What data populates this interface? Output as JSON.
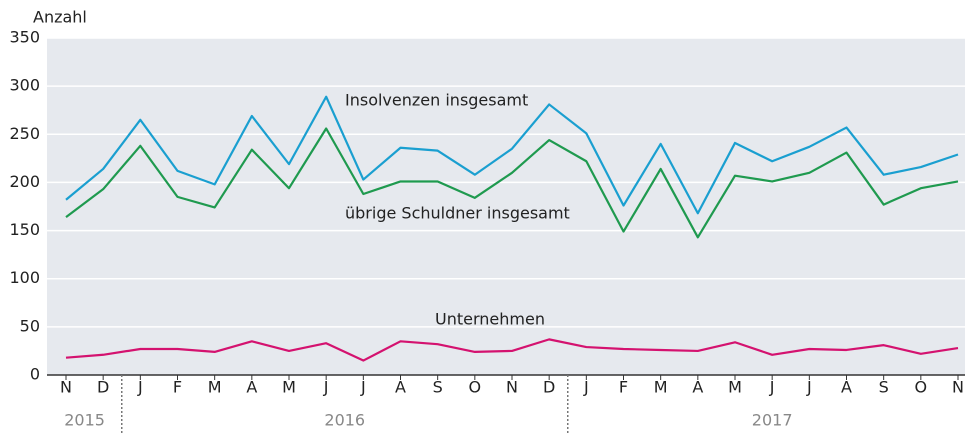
{
  "chart_data": {
    "type": "line",
    "y_label": "Anzahl",
    "categories": [
      "N",
      "D",
      "J",
      "F",
      "M",
      "A",
      "M",
      "J",
      "J",
      "A",
      "S",
      "O",
      "N",
      "D",
      "J",
      "F",
      "M",
      "A",
      "M",
      "J",
      "J",
      "A",
      "S",
      "O",
      "N"
    ],
    "x_groups": [
      {
        "label": "2015",
        "count": 2
      },
      {
        "label": "2016",
        "count": 12
      },
      {
        "label": "2017",
        "count": 11
      }
    ],
    "series": [
      {
        "name": "Insolvenzen insgesamt",
        "color": "#1a9fd0",
        "values": [
          182,
          214,
          265,
          212,
          198,
          269,
          219,
          289,
          203,
          236,
          233,
          208,
          235,
          281,
          251,
          176,
          240,
          168,
          241,
          222,
          237,
          257,
          208,
          216,
          229
        ]
      },
      {
        "name": "übrige Schuldner insgesamt",
        "color": "#1f9a4f",
        "values": [
          164,
          193,
          238,
          185,
          174,
          234,
          194,
          256,
          188,
          201,
          201,
          184,
          210,
          244,
          222,
          149,
          214,
          143,
          207,
          201,
          210,
          231,
          177,
          194,
          201
        ]
      },
      {
        "name": "Unternehmen",
        "color": "#d4126f",
        "values": [
          18,
          21,
          27,
          27,
          24,
          35,
          25,
          33,
          15,
          35,
          32,
          24,
          25,
          37,
          29,
          27,
          26,
          25,
          34,
          21,
          27,
          26,
          31,
          22,
          28
        ]
      }
    ],
    "ylim": [
      0,
      350
    ],
    "yticks": [
      0,
      50,
      100,
      150,
      200,
      250,
      300,
      350
    ],
    "grid": true
  }
}
